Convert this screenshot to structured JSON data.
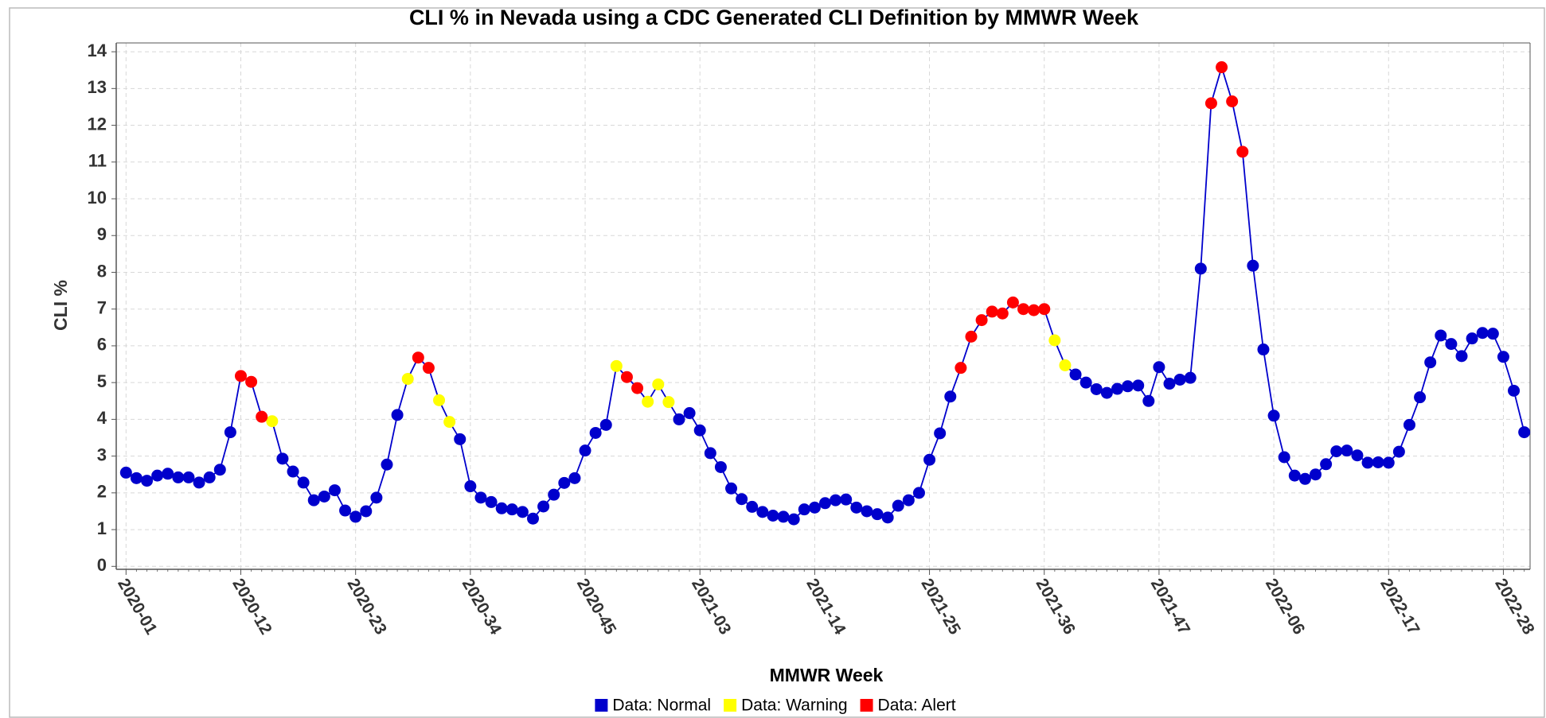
{
  "chart_data": {
    "type": "line",
    "title": "CLI % in Nevada using a CDC Generated CLI Definition by MMWR Week",
    "x_label": "MMWR Week",
    "y_label": "CLI %",
    "categories": [
      "2020-01",
      null,
      null,
      null,
      null,
      null,
      null,
      null,
      null,
      null,
      null,
      "2020-12",
      null,
      null,
      null,
      null,
      null,
      null,
      null,
      null,
      null,
      null,
      "2020-23",
      null,
      null,
      null,
      null,
      null,
      null,
      null,
      null,
      null,
      null,
      "2020-34",
      null,
      null,
      null,
      null,
      null,
      null,
      null,
      null,
      null,
      null,
      "2020-45",
      null,
      null,
      null,
      null,
      null,
      null,
      null,
      null,
      null,
      null,
      "2021-03",
      null,
      null,
      null,
      null,
      null,
      null,
      null,
      null,
      null,
      null,
      "2021-14",
      null,
      null,
      null,
      null,
      null,
      null,
      null,
      null,
      null,
      null,
      "2021-25",
      null,
      null,
      null,
      null,
      null,
      null,
      null,
      null,
      null,
      null,
      "2021-36",
      null,
      null,
      null,
      null,
      null,
      null,
      null,
      null,
      null,
      null,
      "2021-47",
      null,
      null,
      null,
      null,
      null,
      null,
      null,
      null,
      null,
      null,
      "2022-06",
      null,
      null,
      null,
      null,
      null,
      null,
      null,
      null,
      null,
      null,
      "2022-17",
      null,
      null,
      null,
      null,
      null,
      null,
      null,
      null,
      null,
      null,
      "2022-28",
      null,
      null
    ],
    "line_color": "#0000cc",
    "series": [
      {
        "name": "Data: Normal",
        "color": "#0000cc",
        "values": [
          2.55,
          2.4,
          2.33,
          2.47,
          2.52,
          2.42,
          2.42,
          2.28,
          2.42,
          2.63,
          3.65,
          null,
          null,
          null,
          null,
          2.93,
          2.58,
          2.28,
          1.8,
          1.9,
          2.07,
          1.52,
          1.35,
          1.5,
          1.87,
          2.77,
          4.12,
          null,
          null,
          null,
          null,
          null,
          3.46,
          2.18,
          1.87,
          1.75,
          1.58,
          1.55,
          1.48,
          1.3,
          1.63,
          1.95,
          2.27,
          2.4,
          3.15,
          3.63,
          3.85,
          null,
          null,
          null,
          null,
          null,
          null,
          4.0,
          4.17,
          3.7,
          3.08,
          2.7,
          2.12,
          1.83,
          1.62,
          1.48,
          1.38,
          1.35,
          1.28,
          1.55,
          1.6,
          1.72,
          1.8,
          1.82,
          1.6,
          1.5,
          1.42,
          1.33,
          1.65,
          1.8,
          2.0,
          2.9,
          3.62,
          4.62,
          null,
          null,
          null,
          null,
          null,
          null,
          null,
          null,
          null,
          null,
          null,
          5.22,
          5.0,
          4.82,
          4.72,
          4.83,
          4.9,
          4.92,
          4.5,
          5.42,
          4.97,
          5.08,
          5.13,
          8.1,
          null,
          null,
          null,
          null,
          8.18,
          5.9,
          4.1,
          2.97,
          2.47,
          2.38,
          2.5,
          2.78,
          3.13,
          3.15,
          3.02,
          2.82,
          2.83,
          2.82,
          3.12,
          3.85,
          4.6,
          5.55,
          6.28,
          6.05,
          5.72,
          6.2,
          6.35,
          6.33,
          5.7,
          4.78,
          3.65
        ]
      },
      {
        "name": "Data: Warning",
        "color": "#ffff00",
        "values": [
          null,
          null,
          null,
          null,
          null,
          null,
          null,
          null,
          null,
          null,
          null,
          null,
          null,
          null,
          3.95,
          null,
          null,
          null,
          null,
          null,
          null,
          null,
          null,
          null,
          null,
          null,
          null,
          5.1,
          null,
          null,
          4.52,
          3.93,
          null,
          null,
          null,
          null,
          null,
          null,
          null,
          null,
          null,
          null,
          null,
          null,
          null,
          null,
          null,
          5.45,
          null,
          null,
          4.48,
          4.95,
          4.47,
          null,
          null,
          null,
          null,
          null,
          null,
          null,
          null,
          null,
          null,
          null,
          null,
          null,
          null,
          null,
          null,
          null,
          null,
          null,
          null,
          null,
          null,
          null,
          null,
          null,
          null,
          null,
          null,
          null,
          null,
          null,
          null,
          null,
          null,
          null,
          null,
          6.15,
          5.47,
          null,
          null,
          null,
          null,
          null,
          null,
          null,
          null,
          null,
          null,
          null,
          null,
          null,
          null,
          null,
          null,
          null,
          null,
          null,
          null,
          null,
          null,
          null,
          null,
          null,
          null,
          null,
          null,
          null,
          null,
          null,
          null,
          null,
          null,
          null,
          null,
          null,
          null,
          null,
          null,
          null,
          null,
          null,
          null
        ]
      },
      {
        "name": "Data: Alert",
        "color": "#ff0000",
        "values": [
          null,
          null,
          null,
          null,
          null,
          null,
          null,
          null,
          null,
          null,
          null,
          5.18,
          5.02,
          4.07,
          null,
          null,
          null,
          null,
          null,
          null,
          null,
          null,
          null,
          null,
          null,
          null,
          null,
          null,
          5.68,
          5.4,
          null,
          null,
          null,
          null,
          null,
          null,
          null,
          null,
          null,
          null,
          null,
          null,
          null,
          null,
          null,
          null,
          null,
          null,
          5.15,
          4.85,
          null,
          null,
          null,
          null,
          null,
          null,
          null,
          null,
          null,
          null,
          null,
          null,
          null,
          null,
          null,
          null,
          null,
          null,
          null,
          null,
          null,
          null,
          null,
          null,
          null,
          null,
          null,
          null,
          null,
          null,
          5.4,
          6.25,
          6.7,
          6.93,
          6.88,
          7.18,
          7.0,
          6.97,
          7.0,
          null,
          null,
          null,
          null,
          null,
          null,
          null,
          null,
          null,
          null,
          null,
          null,
          null,
          null,
          null,
          12.6,
          13.58,
          12.65,
          11.28,
          null,
          null,
          null,
          null,
          null,
          null,
          null,
          null,
          null,
          null,
          null,
          null,
          null,
          null,
          null,
          null,
          null,
          null,
          null,
          null,
          null,
          null,
          null,
          null,
          null,
          null,
          null
        ]
      }
    ],
    "ylim": [
      -0.08,
      14.24
    ],
    "yticks": [
      0,
      1,
      2,
      3,
      4,
      5,
      6,
      7,
      8,
      9,
      10,
      11,
      12,
      13,
      14
    ],
    "grid": true,
    "legend": "bottom"
  }
}
